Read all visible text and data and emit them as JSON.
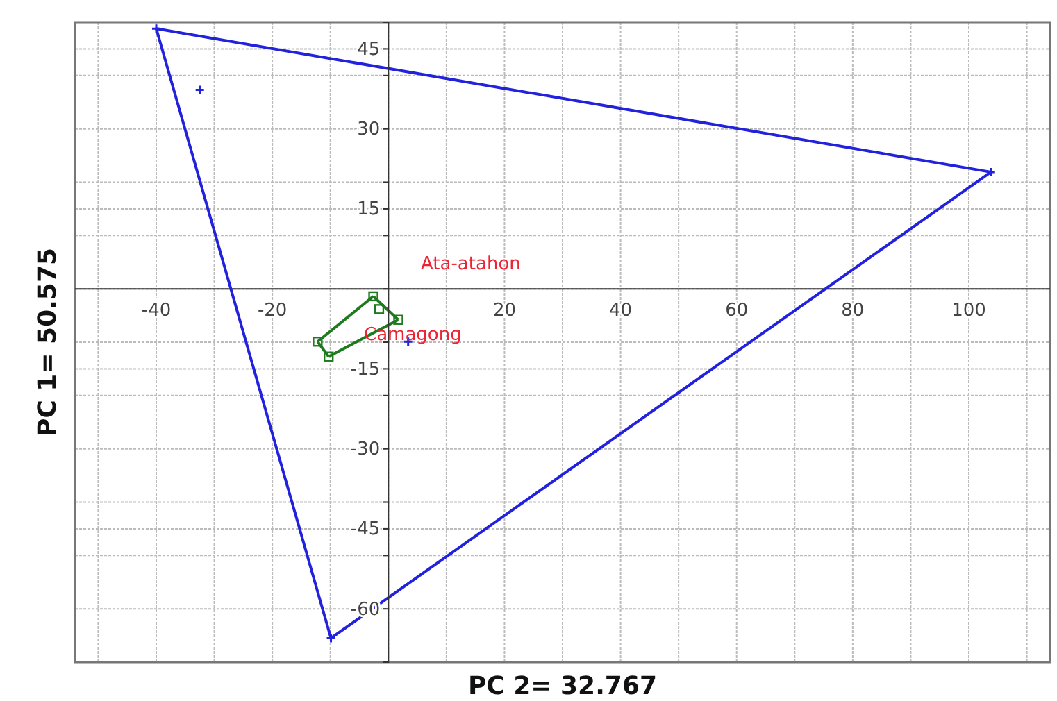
{
  "chart_data": {
    "type": "scatter",
    "xlabel": "PC 2= 32.767",
    "ylabel": "PC 1= 50.575",
    "xlim": [
      -54,
      114
    ],
    "ylim": [
      -70,
      50
    ],
    "xticks": [
      {
        "value": -50,
        "label": null
      },
      -40,
      {
        "value": -30,
        "label": null
      },
      -20,
      {
        "value": -10,
        "label": null
      },
      {
        "value": 0,
        "label": null
      },
      {
        "value": 10,
        "label": null
      },
      20,
      {
        "value": 30,
        "label": null
      },
      40,
      {
        "value": 50,
        "label": null
      },
      60,
      {
        "value": 70,
        "label": null
      },
      80,
      {
        "value": 90,
        "label": null
      },
      100,
      {
        "value": 110,
        "label": null
      }
    ],
    "yticks": [
      -60,
      {
        "value": -50,
        "label": null
      },
      -45,
      {
        "value": -40,
        "label": null
      },
      -30,
      {
        "value": -20,
        "label": null
      },
      -15,
      {
        "value": -10,
        "label": null
      },
      {
        "value": 0,
        "label": null
      },
      {
        "value": 10,
        "label": null
      },
      15,
      {
        "value": 20,
        "label": null
      },
      30,
      {
        "value": 40,
        "label": null
      },
      45
    ],
    "grid": true,
    "series": [
      {
        "type": "line",
        "color": "#2222dd",
        "marker": "none",
        "x": [
          -40,
          103.8
        ],
        "values": [
          48.8,
          21.9
        ]
      },
      {
        "type": "line",
        "color": "#2222dd",
        "marker": "none",
        "x": [
          -9.9,
          103.8
        ],
        "values": [
          -65.5,
          21.9
        ]
      },
      {
        "type": "line",
        "color": "#2222dd",
        "marker": "none",
        "x": [
          -40,
          -9.9
        ],
        "values": [
          48.8,
          -65.5
        ]
      },
      {
        "color": "#2222dd",
        "marker": "cross",
        "x": [
          -40,
          103.8,
          -9.9,
          -32.5,
          3.4
        ],
        "values": [
          48.8,
          21.9,
          -65.5,
          37.3,
          -9.9
        ]
      },
      {
        "type": "line",
        "color": "#1e7a1e",
        "marker": "none",
        "x": [
          -2.6,
          1.7
        ],
        "values": [
          -1.4,
          -5.8
        ]
      },
      {
        "type": "line",
        "color": "#1e7a1e",
        "marker": "none",
        "x": [
          -10.3,
          1.7
        ],
        "values": [
          -12.7,
          -5.8
        ]
      },
      {
        "type": "line",
        "color": "#1e7a1e",
        "marker": "none",
        "x": [
          -12.2,
          -10.3
        ],
        "values": [
          -9.9,
          -12.7
        ]
      },
      {
        "type": "line",
        "color": "#1e7a1e",
        "marker": "none",
        "x": [
          -12.2,
          -2.6
        ],
        "values": [
          -9.9,
          -1.4
        ]
      },
      {
        "color": "#1e7a1e",
        "marker": "square",
        "x": [
          -2.6,
          -1.6,
          1.7,
          -12.2,
          -10.3
        ],
        "values": [
          -1.4,
          -3.8,
          -5.8,
          -9.9,
          -12.7
        ]
      }
    ],
    "annotations": [
      "Ata-atahon",
      "Camagong"
    ]
  }
}
